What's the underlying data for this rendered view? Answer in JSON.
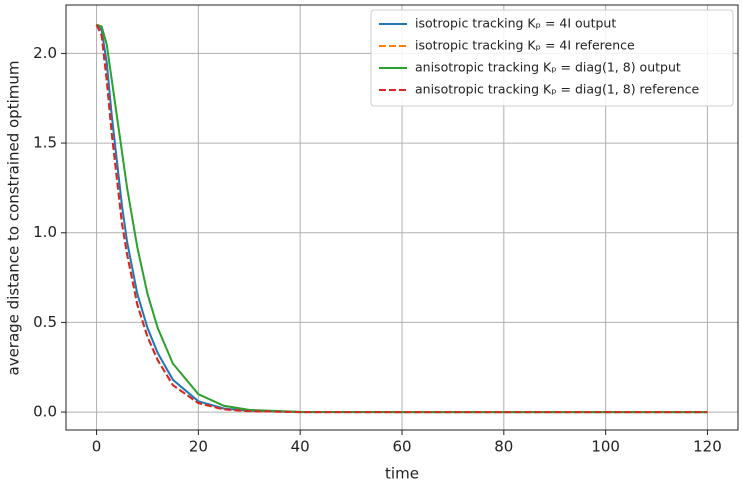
{
  "chart_data": {
    "type": "line",
    "x_label": "time",
    "y_label": "average distance to constrained optimum",
    "x": [
      0,
      1,
      2,
      3,
      4,
      5,
      6,
      8,
      10,
      12,
      15,
      20,
      25,
      30,
      40,
      60,
      80,
      100,
      120
    ],
    "series": [
      {
        "name": "isotropic tracking Kₚ = 4I output",
        "color": "#1f77b4",
        "linestyle": "solid",
        "values": [
          2.16,
          2.13,
          1.95,
          1.65,
          1.4,
          1.15,
          0.95,
          0.66,
          0.47,
          0.33,
          0.18,
          0.06,
          0.02,
          0.007,
          0,
          0,
          0,
          0,
          0
        ]
      },
      {
        "name": "isotropic tracking Kₚ = 4I reference",
        "color": "#ff7f0e",
        "linestyle": "dashed",
        "values": [
          2.16,
          2.1,
          1.85,
          1.55,
          1.3,
          1.05,
          0.88,
          0.6,
          0.42,
          0.29,
          0.15,
          0.05,
          0.015,
          0.005,
          0,
          0,
          0,
          0,
          0
        ]
      },
      {
        "name": "anisotropic tracking Kₚ = diag(1, 8) output",
        "color": "#2ca02c",
        "linestyle": "solid",
        "values": [
          2.16,
          2.15,
          2.05,
          1.85,
          1.65,
          1.45,
          1.25,
          0.92,
          0.66,
          0.47,
          0.27,
          0.1,
          0.035,
          0.012,
          0.001,
          0,
          0,
          0,
          0
        ]
      },
      {
        "name": "anisotropic tracking Kₚ = diag(1, 8) reference",
        "color": "#d62728",
        "linestyle": "dashed",
        "values": [
          2.16,
          2.1,
          1.85,
          1.55,
          1.3,
          1.05,
          0.88,
          0.6,
          0.42,
          0.29,
          0.15,
          0.05,
          0.015,
          0.005,
          0,
          0,
          0,
          0,
          0
        ]
      }
    ],
    "xlim": [
      -6,
      126
    ],
    "ylim": [
      -0.1,
      2.27
    ],
    "xticks": [
      0,
      20,
      40,
      60,
      80,
      100,
      120
    ],
    "yticks": [
      {
        "value": 0,
        "label": "0.0"
      },
      0.5,
      {
        "value": 1,
        "label": "1.0"
      },
      1.5,
      {
        "value": 2,
        "label": "2.0"
      }
    ],
    "grid": true,
    "legend": "upper right"
  }
}
